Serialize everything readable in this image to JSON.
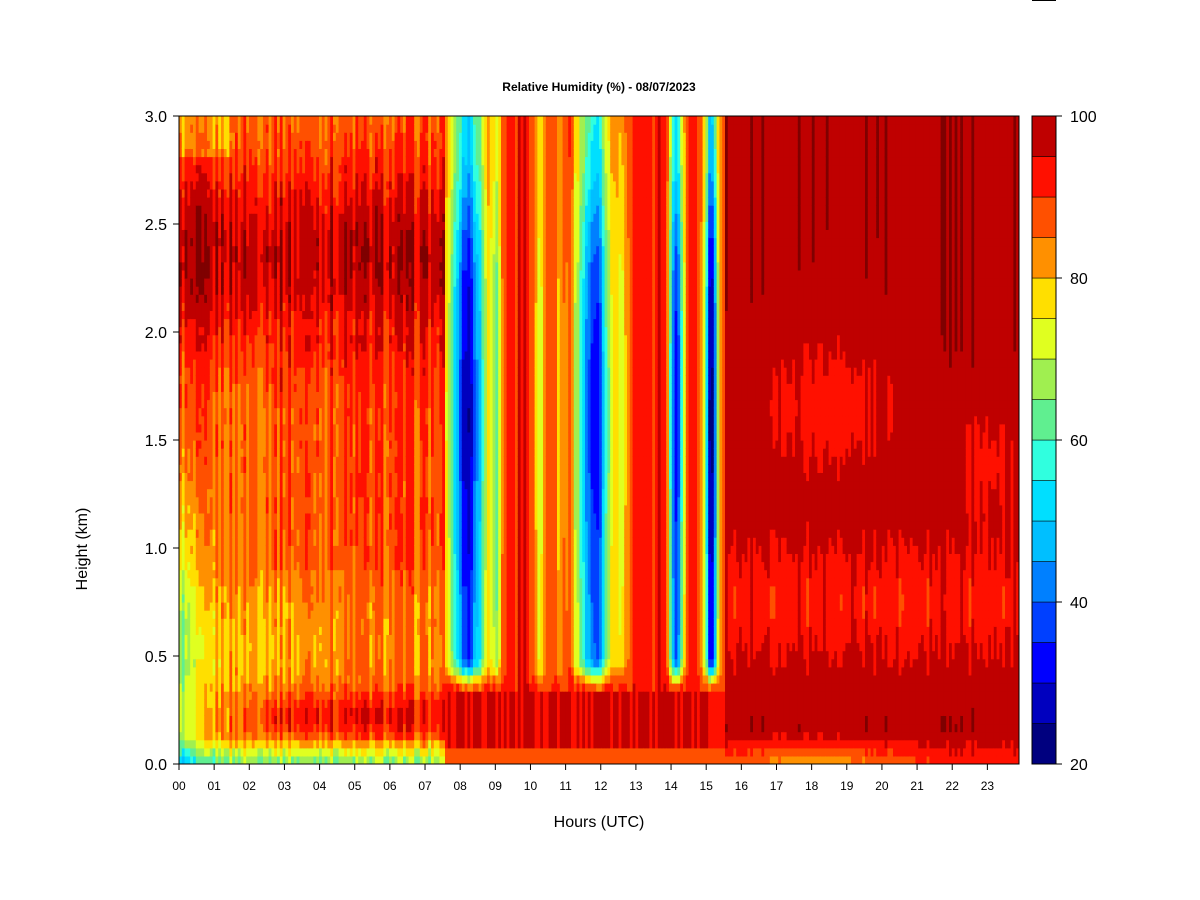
{
  "chart_data": {
    "type": "heatmap",
    "title": "Relative Humidity (%) - 08/07/2023",
    "xlabel": "Hours (UTC)",
    "ylabel": "Height (km)",
    "x_ticks": [
      "00",
      "01",
      "02",
      "03",
      "04",
      "05",
      "06",
      "07",
      "08",
      "09",
      "10",
      "11",
      "12",
      "13",
      "14",
      "15",
      "16",
      "17",
      "18",
      "19",
      "20",
      "21",
      "22",
      "23"
    ],
    "xlim": [
      0,
      23.9
    ],
    "y_ticks": [
      "0.0",
      "0.5",
      "1.0",
      "1.5",
      "2.0",
      "2.5",
      "3.0"
    ],
    "ylim": [
      0,
      3.0
    ],
    "colorbar": {
      "ticks": [
        "20",
        "40",
        "60",
        "80",
        "100"
      ],
      "range": [
        20,
        100
      ],
      "step": 5,
      "colors": [
        "#00007f",
        "#0000bf",
        "#0000ff",
        "#0040ff",
        "#0080ff",
        "#00bfff",
        "#00dfff",
        "#30ffdf",
        "#60ef90",
        "#a0ef50",
        "#e0ff20",
        "#ffdf00",
        "#ff9000",
        "#ff5000",
        "#ff1000",
        "#bf0000",
        "#7f0000"
      ]
    },
    "grid": false,
    "features": [
      {
        "description": "near-surface humid layer",
        "hours": [
          7.6,
          16.0
        ],
        "height_km": [
          0.0,
          0.35
        ],
        "rh": 98
      },
      {
        "description": "upper humid layer",
        "hours": [
          0.0,
          7.5
        ],
        "height_km": [
          2.0,
          2.75
        ],
        "rh": 96
      },
      {
        "description": "dry column",
        "hours": [
          7.6,
          8.9
        ],
        "height_km": [
          0.45,
          3.0
        ],
        "min_rh": 28
      },
      {
        "description": "dry column",
        "hours": [
          11.0,
          12.6
        ],
        "height_km": [
          0.45,
          3.0
        ],
        "min_rh": 32
      },
      {
        "description": "dry column",
        "hours": [
          13.9,
          14.4
        ],
        "height_km": [
          0.4,
          3.0
        ],
        "min_rh": 30
      },
      {
        "description": "dry column",
        "hours": [
          14.9,
          15.4
        ],
        "height_km": [
          0.4,
          3.0
        ],
        "min_rh": 26
      },
      {
        "description": "saturated region",
        "hours": [
          15.5,
          23.9
        ],
        "height_km": [
          0.0,
          3.0
        ],
        "rh": 99
      }
    ]
  }
}
